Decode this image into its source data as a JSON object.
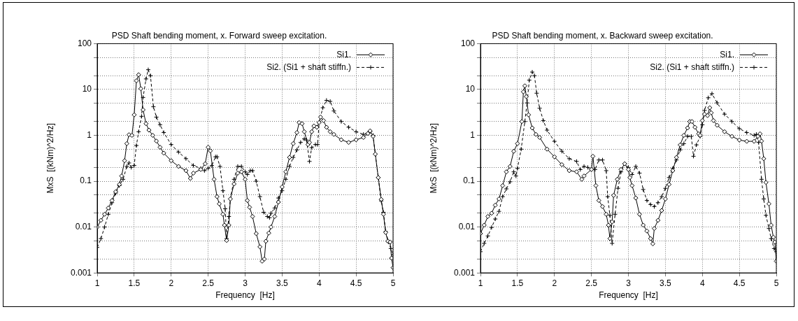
{
  "chart_data": [
    {
      "type": "line",
      "title": "PSD Shaft bending moment, x. Forward sweep excitation.",
      "xlabel": "Frequency  [Hz]",
      "ylabel": "MxS  [(kNm)^2/Hz]",
      "log": "y",
      "grid": true,
      "legend": "top right",
      "xlim": [
        1,
        5
      ],
      "xticks": [
        1,
        1.5,
        2,
        2.5,
        3,
        3.5,
        4,
        4.5,
        5
      ],
      "ylim": [
        0.001,
        100
      ],
      "yticks": [
        0.001,
        {
          "value": 0.002,
          "label": null
        },
        {
          "value": 0.005,
          "label": null
        },
        0.01,
        {
          "value": 0.02,
          "label": null
        },
        {
          "value": 0.05,
          "label": null
        },
        0.1,
        {
          "value": 0.2,
          "label": null
        },
        {
          "value": 0.5,
          "label": null
        },
        1,
        {
          "value": 2,
          "label": null
        },
        {
          "value": 5,
          "label": null
        },
        10,
        {
          "value": 20,
          "label": null
        },
        {
          "value": 50,
          "label": null
        },
        100
      ],
      "series": [
        {
          "name": "Si1.",
          "color": "#000000",
          "marker": "diamond",
          "line_style": "solid",
          "x": [
            1.0,
            1.05,
            1.1,
            1.15,
            1.2,
            1.25,
            1.3,
            1.33,
            1.37,
            1.4,
            1.43,
            1.47,
            1.5,
            1.53,
            1.56,
            1.59,
            1.62,
            1.66,
            1.7,
            1.75,
            1.8,
            1.85,
            1.9,
            2.0,
            2.1,
            2.2,
            2.26,
            2.3,
            2.4,
            2.46,
            2.5,
            2.53,
            2.58,
            2.62,
            2.65,
            2.7,
            2.72,
            2.75,
            2.78,
            2.8,
            2.85,
            2.9,
            2.95,
            3.0,
            3.03,
            3.06,
            3.1,
            3.15,
            3.2,
            3.23,
            3.26,
            3.28,
            3.32,
            3.35,
            3.4,
            3.45,
            3.5,
            3.55,
            3.6,
            3.65,
            3.7,
            3.73,
            3.77,
            3.8,
            3.85,
            3.87,
            3.9,
            3.93,
            3.97,
            4.0,
            4.02,
            4.06,
            4.1,
            4.15,
            4.2,
            4.3,
            4.4,
            4.5,
            4.6,
            4.66,
            4.69,
            4.73,
            4.76,
            4.8,
            4.84,
            4.87,
            4.9,
            4.93,
            4.96,
            4.98,
            5.0
          ],
          "values": [
            0.01,
            0.014,
            0.019,
            0.026,
            0.038,
            0.059,
            0.085,
            0.13,
            0.28,
            0.66,
            1.03,
            1.0,
            2.8,
            15.5,
            21,
            10.4,
            3.6,
            1.8,
            1.3,
            1.0,
            0.75,
            0.55,
            0.41,
            0.28,
            0.21,
            0.17,
            0.115,
            0.15,
            0.18,
            0.24,
            0.55,
            0.46,
            0.11,
            0.046,
            0.032,
            0.019,
            0.011,
            0.0051,
            0.011,
            0.041,
            0.087,
            0.15,
            0.16,
            0.11,
            0.038,
            0.027,
            0.017,
            0.0072,
            0.0037,
            0.0018,
            0.002,
            0.0049,
            0.0074,
            0.01,
            0.017,
            0.035,
            0.075,
            0.16,
            0.33,
            0.66,
            1.15,
            1.9,
            1.8,
            1.2,
            0.63,
            0.7,
            1.2,
            1.6,
            1.5,
            1.9,
            2.5,
            2.1,
            1.5,
            1.2,
            1.05,
            0.8,
            0.7,
            0.8,
            0.9,
            1.1,
            1.25,
            0.95,
            0.39,
            0.12,
            0.04,
            0.019,
            0.0076,
            0.0049,
            0.0047,
            0.0021,
            0.0013
          ]
        },
        {
          "name": "Si2. (Si1 + shaft stiffn.)",
          "color": "#000000",
          "marker": "cross",
          "line_style": "dashed",
          "x": [
            1.0,
            1.05,
            1.1,
            1.15,
            1.2,
            1.25,
            1.3,
            1.35,
            1.4,
            1.43,
            1.46,
            1.5,
            1.53,
            1.56,
            1.6,
            1.62,
            1.66,
            1.69,
            1.72,
            1.76,
            1.8,
            1.85,
            1.9,
            2.0,
            2.1,
            2.2,
            2.3,
            2.4,
            2.45,
            2.5,
            2.55,
            2.6,
            2.62,
            2.66,
            2.7,
            2.73,
            2.75,
            2.78,
            2.8,
            2.85,
            2.9,
            2.95,
            3.0,
            3.03,
            3.07,
            3.1,
            3.15,
            3.2,
            3.25,
            3.3,
            3.33,
            3.35,
            3.4,
            3.45,
            3.5,
            3.55,
            3.6,
            3.65,
            3.7,
            3.75,
            3.8,
            3.83,
            3.87,
            3.9,
            3.95,
            3.98,
            4.0,
            4.05,
            4.1,
            4.15,
            4.2,
            4.3,
            4.4,
            4.5,
            4.6,
            4.69,
            4.73,
            4.76,
            4.8,
            4.84,
            4.87,
            4.9,
            4.94,
            4.97,
            5.0
          ],
          "values": [
            0.0036,
            0.0056,
            0.01,
            0.019,
            0.034,
            0.055,
            0.08,
            0.11,
            0.21,
            0.25,
            0.2,
            0.22,
            0.6,
            1.2,
            2.6,
            6.7,
            17,
            27,
            20,
            4.2,
            2.5,
            1.7,
            1.15,
            0.63,
            0.43,
            0.31,
            0.22,
            0.19,
            0.17,
            0.19,
            0.22,
            0.34,
            0.34,
            0.21,
            0.062,
            0.025,
            0.0056,
            0.017,
            0.041,
            0.11,
            0.21,
            0.21,
            0.16,
            0.14,
            0.17,
            0.17,
            0.1,
            0.046,
            0.021,
            0.017,
            0.016,
            0.02,
            0.026,
            0.043,
            0.062,
            0.11,
            0.21,
            0.33,
            0.48,
            0.7,
            0.84,
            0.79,
            0.27,
            0.54,
            0.63,
            0.63,
            1.9,
            4.0,
            5.8,
            5.5,
            3.4,
            2.0,
            1.5,
            1.2,
            1.05,
            1.2,
            1.0,
            0.39,
            0.12,
            0.037,
            0.021,
            0.008,
            0.0047,
            0.0034,
            0.0025
          ]
        }
      ]
    },
    {
      "type": "line",
      "title": "PSD Shaft bending moment, x. Backward sweep excitation.",
      "xlabel": "Frequency  [Hz]",
      "ylabel": "MxS  [(kNm)^2/Hz]",
      "log": "y",
      "grid": true,
      "legend": "top right",
      "xlim": [
        1,
        5
      ],
      "xticks": [
        1,
        1.5,
        2,
        2.5,
        3,
        3.5,
        4,
        4.5,
        5
      ],
      "ylim": [
        0.001,
        100
      ],
      "yticks": [
        0.001,
        {
          "value": 0.002,
          "label": null
        },
        {
          "value": 0.005,
          "label": null
        },
        0.01,
        {
          "value": 0.02,
          "label": null
        },
        {
          "value": 0.05,
          "label": null
        },
        0.1,
        {
          "value": 0.2,
          "label": null
        },
        {
          "value": 0.5,
          "label": null
        },
        1,
        {
          "value": 2,
          "label": null
        },
        {
          "value": 5,
          "label": null
        },
        10,
        {
          "value": 20,
          "label": null
        },
        {
          "value": 50,
          "label": null
        },
        100
      ],
      "series": [
        {
          "name": "Si1.",
          "color": "#000000",
          "marker": "diamond",
          "line_style": "solid",
          "x": [
            1.0,
            1.05,
            1.1,
            1.15,
            1.2,
            1.25,
            1.3,
            1.35,
            1.4,
            1.45,
            1.5,
            1.56,
            1.58,
            1.6,
            1.62,
            1.65,
            1.7,
            1.75,
            1.8,
            1.9,
            2.0,
            2.1,
            2.2,
            2.3,
            2.37,
            2.4,
            2.5,
            2.52,
            2.56,
            2.6,
            2.65,
            2.7,
            2.73,
            2.75,
            2.78,
            2.8,
            2.85,
            2.9,
            2.95,
            3.0,
            3.02,
            3.05,
            3.1,
            3.15,
            3.2,
            3.25,
            3.3,
            3.33,
            3.35,
            3.4,
            3.45,
            3.5,
            3.55,
            3.6,
            3.65,
            3.7,
            3.75,
            3.8,
            3.83,
            3.86,
            3.9,
            3.95,
            3.97,
            4.0,
            4.03,
            4.07,
            4.1,
            4.12,
            4.15,
            4.2,
            4.3,
            4.4,
            4.5,
            4.6,
            4.7,
            4.75,
            4.78,
            4.8,
            4.83,
            4.86,
            4.9,
            4.93,
            4.96,
            4.98,
            5.0
          ],
          "values": [
            0.0072,
            0.011,
            0.017,
            0.02,
            0.03,
            0.041,
            0.08,
            0.16,
            0.21,
            0.45,
            0.66,
            2.0,
            8.9,
            12,
            7,
            2.8,
            1.45,
            1.05,
            0.9,
            0.5,
            0.34,
            0.23,
            0.17,
            0.16,
            0.11,
            0.13,
            0.18,
            0.35,
            0.08,
            0.038,
            0.028,
            0.019,
            0.011,
            0.0056,
            0.013,
            0.049,
            0.11,
            0.18,
            0.24,
            0.18,
            0.12,
            0.08,
            0.043,
            0.019,
            0.011,
            0.0082,
            0.0056,
            0.0043,
            0.0093,
            0.014,
            0.023,
            0.041,
            0.085,
            0.17,
            0.33,
            0.62,
            1.0,
            1.45,
            2.0,
            2.0,
            1.5,
            1.08,
            1.0,
            2.1,
            2.9,
            2.7,
            4.0,
            3.1,
            2.1,
            1.66,
            1.2,
            0.95,
            0.79,
            0.74,
            0.74,
            0.95,
            1.08,
            0.75,
            0.31,
            0.094,
            0.032,
            0.011,
            0.006,
            0.0047,
            0.0018
          ]
        },
        {
          "name": "Si2. (Si1 + shaft stiffn.)",
          "color": "#000000",
          "marker": "cross",
          "line_style": "dashed",
          "x": [
            1.0,
            1.05,
            1.1,
            1.15,
            1.2,
            1.25,
            1.3,
            1.35,
            1.4,
            1.45,
            1.48,
            1.5,
            1.55,
            1.6,
            1.63,
            1.66,
            1.7,
            1.73,
            1.76,
            1.8,
            1.85,
            1.9,
            2.0,
            2.1,
            2.2,
            2.3,
            2.35,
            2.4,
            2.45,
            2.5,
            2.55,
            2.6,
            2.65,
            2.7,
            2.72,
            2.75,
            2.78,
            2.82,
            2.86,
            2.9,
            2.95,
            3.0,
            3.05,
            3.1,
            3.15,
            3.2,
            3.25,
            3.3,
            3.35,
            3.4,
            3.45,
            3.5,
            3.55,
            3.6,
            3.65,
            3.7,
            3.75,
            3.8,
            3.85,
            3.88,
            3.92,
            3.97,
            4.0,
            4.03,
            4.08,
            4.13,
            4.2,
            4.3,
            4.4,
            4.5,
            4.6,
            4.7,
            4.73,
            4.76,
            4.8,
            4.83,
            4.86,
            4.9,
            4.93,
            4.97,
            5.0
          ],
          "values": [
            0.0029,
            0.0044,
            0.0064,
            0.0098,
            0.015,
            0.022,
            0.046,
            0.068,
            0.097,
            0.16,
            0.13,
            0.19,
            0.5,
            2.0,
            5.1,
            16,
            24,
            20,
            8.3,
            3.9,
            2.1,
            1.3,
            0.74,
            0.45,
            0.31,
            0.27,
            0.18,
            0.21,
            0.2,
            0.18,
            0.18,
            0.29,
            0.29,
            0.17,
            0.046,
            0.018,
            0.0044,
            0.019,
            0.07,
            0.16,
            0.24,
            0.2,
            0.14,
            0.21,
            0.15,
            0.066,
            0.038,
            0.031,
            0.028,
            0.034,
            0.046,
            0.07,
            0.12,
            0.19,
            0.29,
            0.48,
            0.66,
            0.95,
            0.95,
            0.35,
            0.62,
            0.95,
            1.7,
            3.5,
            6.6,
            8.1,
            5.1,
            2.9,
            2.0,
            1.4,
            1.15,
            1.0,
            1.05,
            0.7,
            0.11,
            0.041,
            0.018,
            0.0093,
            0.0056,
            0.0034,
            0.0029
          ]
        }
      ]
    }
  ]
}
